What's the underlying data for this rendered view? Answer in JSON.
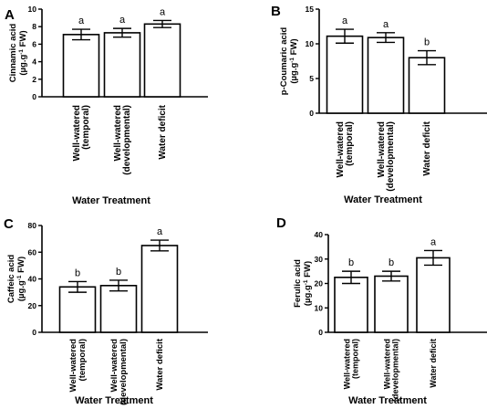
{
  "chart_data": [
    {
      "type": "bar",
      "panel": "A",
      "categories": [
        "Well-watered (temporal)",
        "Well-watered (developmental)",
        "Water deficit"
      ],
      "values": [
        7.1,
        7.3,
        8.3
      ],
      "errors": [
        0.6,
        0.5,
        0.4
      ],
      "letters": [
        "a",
        "a",
        "a"
      ],
      "ylabel": "Cinnamic acid (µg.g-1 FW)",
      "xlabel": "Water Treatment",
      "ylim": [
        0,
        10
      ],
      "yticks": [
        0,
        2,
        4,
        6,
        8,
        10
      ]
    },
    {
      "type": "bar",
      "panel": "B",
      "categories": [
        "Well-watered (temporal)",
        "Well-watered (developmental)",
        "Water deficit"
      ],
      "values": [
        11.1,
        10.9,
        8.0
      ],
      "errors": [
        1.0,
        0.7,
        1.0
      ],
      "letters": [
        "a",
        "a",
        "b"
      ],
      "ylabel": "p-Coumaric acid (µg.g-1 FW)",
      "xlabel": "Water Treatment",
      "ylim": [
        0,
        15
      ],
      "yticks": [
        0,
        5,
        10,
        15
      ]
    },
    {
      "type": "bar",
      "panel": "C",
      "categories": [
        "Well-watered (temporal)",
        "Well-watered (developmental)",
        "Water deficit"
      ],
      "values": [
        34,
        35,
        65
      ],
      "errors": [
        4,
        4,
        4
      ],
      "letters": [
        "b",
        "b",
        "a"
      ],
      "ylabel": "Caffeic acid (µg.g-1 FW)",
      "xlabel": "Water Treatment",
      "ylim": [
        0,
        80
      ],
      "yticks": [
        0,
        20,
        40,
        60,
        80
      ]
    },
    {
      "type": "bar",
      "panel": "D",
      "categories": [
        "Well-watered (temporal)",
        "Well-watered (developmental)",
        "Water deficit"
      ],
      "values": [
        22.5,
        23,
        30.5
      ],
      "errors": [
        2.5,
        2,
        3
      ],
      "letters": [
        "b",
        "b",
        "a"
      ],
      "ylabel": "Ferulic acid (µg.g-1 FW)",
      "xlabel": "Water Treatment",
      "ylim": [
        0,
        40
      ],
      "yticks": [
        0,
        10,
        20,
        30,
        40
      ]
    }
  ]
}
